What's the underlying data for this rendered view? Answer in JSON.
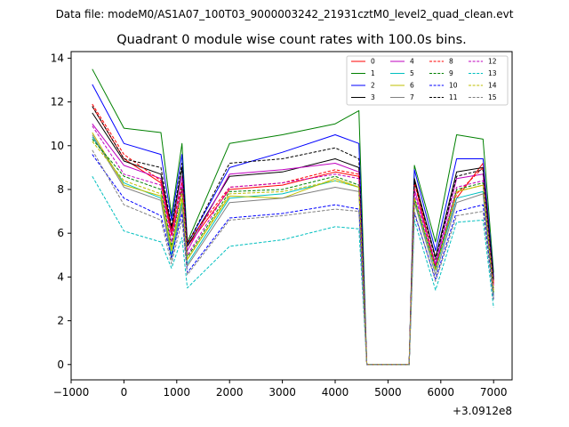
{
  "chart_data": {
    "type": "line",
    "suptitle": "Data file: modeM0/AS1A07_100T03_9000003242_21931cztM0_level2_quad_clean.evt",
    "title": "Quadrant 0 module wise count rates with 100.0s bins.",
    "xlabel": "",
    "ylabel": "",
    "x_offset_label": "+3.0912e8",
    "xlim": [
      -1000,
      7350
    ],
    "ylim": [
      -0.7,
      14.3
    ],
    "xticks": [
      -1000,
      0,
      1000,
      2000,
      3000,
      4000,
      5000,
      6000,
      7000
    ],
    "xtick_labels": [
      "−1000",
      "0",
      "1000",
      "2000",
      "3000",
      "4000",
      "5000",
      "6000",
      "7000"
    ],
    "yticks": [
      0,
      2,
      4,
      6,
      8,
      10,
      12,
      14
    ],
    "ytick_labels": [
      "0",
      "2",
      "4",
      "6",
      "8",
      "10",
      "12",
      "14"
    ],
    "legend": {
      "position": "top-right",
      "columns": 4
    },
    "series": [
      {
        "name": "0",
        "color": "#ff0000",
        "dashed": false,
        "x": [
          -600,
          0,
          700,
          900,
          1100,
          1200,
          2000,
          3000,
          4000,
          4450,
          4600,
          5400,
          5500,
          5900,
          6300,
          6800,
          7000
        ],
        "values": [
          11.8,
          9.4,
          8.3,
          5.9,
          8.0,
          5.4,
          8.0,
          8.2,
          8.8,
          8.6,
          0.0,
          0.0,
          8.4,
          4.4,
          7.6,
          9.2,
          3.8
        ]
      },
      {
        "name": "1",
        "color": "#008000",
        "dashed": false,
        "x": [
          -600,
          0,
          700,
          900,
          1100,
          1200,
          2000,
          3000,
          4000,
          4450,
          4600,
          5400,
          5500,
          5900,
          6300,
          6800,
          7000
        ],
        "values": [
          13.5,
          10.8,
          10.6,
          6.8,
          10.1,
          5.6,
          10.1,
          10.5,
          11.0,
          11.6,
          0.0,
          0.0,
          9.1,
          5.6,
          10.5,
          10.3,
          4.2
        ]
      },
      {
        "name": "2",
        "color": "#0000ff",
        "dashed": false,
        "x": [
          -600,
          0,
          700,
          900,
          1100,
          1200,
          2000,
          3000,
          4000,
          4450,
          4600,
          5400,
          5500,
          5900,
          6300,
          6800,
          7000
        ],
        "values": [
          12.8,
          10.1,
          9.6,
          6.6,
          9.6,
          5.5,
          9.0,
          9.7,
          10.5,
          10.1,
          0.0,
          0.0,
          8.9,
          5.2,
          9.4,
          9.4,
          4.0
        ]
      },
      {
        "name": "3",
        "color": "#000000",
        "dashed": false,
        "x": [
          -600,
          0,
          700,
          900,
          1100,
          1200,
          2000,
          3000,
          4000,
          4450,
          4600,
          5400,
          5500,
          5900,
          6300,
          6800,
          7000
        ],
        "values": [
          11.5,
          9.3,
          8.7,
          6.2,
          9.0,
          5.4,
          8.6,
          8.8,
          9.4,
          9.0,
          0.0,
          0.0,
          8.5,
          4.9,
          8.8,
          9.0,
          3.9
        ]
      },
      {
        "name": "4",
        "color": "#bf00bf",
        "dashed": false,
        "x": [
          -600,
          0,
          700,
          900,
          1100,
          1200,
          2000,
          3000,
          4000,
          4450,
          4600,
          5400,
          5500,
          5900,
          6300,
          6800,
          7000
        ],
        "values": [
          11.0,
          9.1,
          8.5,
          6.0,
          8.6,
          5.2,
          8.7,
          8.9,
          9.2,
          8.8,
          0.0,
          0.0,
          8.0,
          4.6,
          8.5,
          8.7,
          3.6
        ]
      },
      {
        "name": "5",
        "color": "#00bfbf",
        "dashed": false,
        "x": [
          -600,
          0,
          700,
          900,
          1100,
          1200,
          2000,
          3000,
          4000,
          4450,
          4600,
          5400,
          5500,
          5900,
          6300,
          6800,
          7000
        ],
        "values": [
          10.4,
          8.3,
          7.6,
          5.0,
          7.4,
          4.6,
          7.6,
          7.8,
          8.4,
          8.1,
          0.0,
          0.0,
          7.5,
          4.3,
          7.6,
          7.9,
          3.2
        ]
      },
      {
        "name": "6",
        "color": "#bfbf00",
        "dashed": false,
        "x": [
          -600,
          0,
          700,
          900,
          1100,
          1200,
          2000,
          3000,
          4000,
          4450,
          4600,
          5400,
          5500,
          5900,
          6300,
          6800,
          7000
        ],
        "values": [
          10.6,
          8.2,
          7.7,
          5.2,
          7.6,
          4.8,
          7.7,
          7.6,
          8.5,
          8.1,
          0.0,
          0.0,
          7.6,
          4.4,
          7.9,
          8.2,
          3.4
        ]
      },
      {
        "name": "7",
        "color": "#808080",
        "dashed": false,
        "x": [
          -600,
          0,
          700,
          900,
          1100,
          1200,
          2000,
          3000,
          4000,
          4450,
          4600,
          5400,
          5500,
          5900,
          6300,
          6800,
          7000
        ],
        "values": [
          10.5,
          8.1,
          7.5,
          4.8,
          7.2,
          4.5,
          7.4,
          7.6,
          8.1,
          7.9,
          0.0,
          0.0,
          7.4,
          4.1,
          7.4,
          7.8,
          3.1
        ]
      },
      {
        "name": "8",
        "color": "#ff0000",
        "dashed": true,
        "x": [
          -600,
          0,
          700,
          900,
          1100,
          1200,
          2000,
          3000,
          4000,
          4450,
          4600,
          5400,
          5500,
          5900,
          6300,
          6800,
          7000
        ],
        "values": [
          11.9,
          9.6,
          8.4,
          6.1,
          8.3,
          5.6,
          8.1,
          8.3,
          8.9,
          8.7,
          0.0,
          0.0,
          8.3,
          4.5,
          7.8,
          9.0,
          3.7
        ]
      },
      {
        "name": "9",
        "color": "#008000",
        "dashed": true,
        "x": [
          -600,
          0,
          700,
          900,
          1100,
          1200,
          2000,
          3000,
          4000,
          4450,
          4600,
          5400,
          5500,
          5900,
          6300,
          6800,
          7000
        ],
        "values": [
          10.3,
          8.6,
          8.0,
          5.4,
          8.1,
          4.9,
          7.9,
          8.0,
          8.6,
          8.2,
          0.0,
          0.0,
          7.6,
          4.4,
          8.0,
          8.3,
          3.3
        ]
      },
      {
        "name": "10",
        "color": "#0000ff",
        "dashed": true,
        "x": [
          -600,
          0,
          700,
          900,
          1100,
          1200,
          2000,
          3000,
          4000,
          4450,
          4600,
          5400,
          5500,
          5900,
          6300,
          6800,
          7000
        ],
        "values": [
          9.6,
          7.6,
          6.8,
          4.9,
          6.9,
          4.2,
          6.7,
          6.9,
          7.3,
          7.1,
          0.0,
          0.0,
          6.9,
          3.9,
          7.0,
          7.3,
          3.0
        ]
      },
      {
        "name": "11",
        "color": "#000000",
        "dashed": true,
        "x": [
          -600,
          0,
          700,
          900,
          1100,
          1200,
          2000,
          3000,
          4000,
          4450,
          4600,
          5400,
          5500,
          5900,
          6300,
          6800,
          7000
        ],
        "values": [
          11.8,
          9.4,
          9.0,
          6.3,
          9.2,
          5.5,
          9.2,
          9.4,
          9.9,
          9.4,
          0.0,
          0.0,
          8.4,
          4.8,
          8.6,
          8.9,
          3.8
        ]
      },
      {
        "name": "12",
        "color": "#bf00bf",
        "dashed": true,
        "x": [
          -600,
          0,
          700,
          900,
          1100,
          1200,
          2000,
          3000,
          4000,
          4450,
          4600,
          5400,
          5500,
          5900,
          6300,
          6800,
          7000
        ],
        "values": [
          10.9,
          8.7,
          8.2,
          5.6,
          8.2,
          5.0,
          8.1,
          8.3,
          8.7,
          8.5,
          0.0,
          0.0,
          7.8,
          4.5,
          8.1,
          8.4,
          3.5
        ]
      },
      {
        "name": "13",
        "color": "#00bfbf",
        "dashed": true,
        "x": [
          -600,
          0,
          700,
          900,
          1100,
          1200,
          2000,
          3000,
          4000,
          4450,
          4600,
          5400,
          5500,
          5900,
          6300,
          6800,
          7000
        ],
        "values": [
          8.6,
          6.1,
          5.6,
          4.4,
          5.8,
          3.5,
          5.4,
          5.7,
          6.3,
          6.2,
          0.0,
          0.0,
          6.6,
          3.4,
          6.5,
          6.6,
          2.6
        ]
      },
      {
        "name": "14",
        "color": "#bfbf00",
        "dashed": true,
        "x": [
          -600,
          0,
          700,
          900,
          1100,
          1200,
          2000,
          3000,
          4000,
          4450,
          4600,
          5400,
          5500,
          5900,
          6300,
          6800,
          7000
        ],
        "values": [
          10.2,
          8.4,
          7.8,
          5.3,
          7.8,
          4.8,
          7.8,
          7.9,
          8.4,
          8.1,
          0.0,
          0.0,
          7.6,
          4.3,
          7.9,
          8.2,
          3.3
        ]
      },
      {
        "name": "15",
        "color": "#808080",
        "dashed": true,
        "x": [
          -600,
          0,
          700,
          900,
          1100,
          1200,
          2000,
          3000,
          4000,
          4450,
          4600,
          5400,
          5500,
          5900,
          6300,
          6800,
          7000
        ],
        "values": [
          9.8,
          7.3,
          6.6,
          4.6,
          6.6,
          4.1,
          6.6,
          6.8,
          7.1,
          7.0,
          0.0,
          0.0,
          7.0,
          3.8,
          6.8,
          7.0,
          2.9
        ]
      }
    ]
  }
}
